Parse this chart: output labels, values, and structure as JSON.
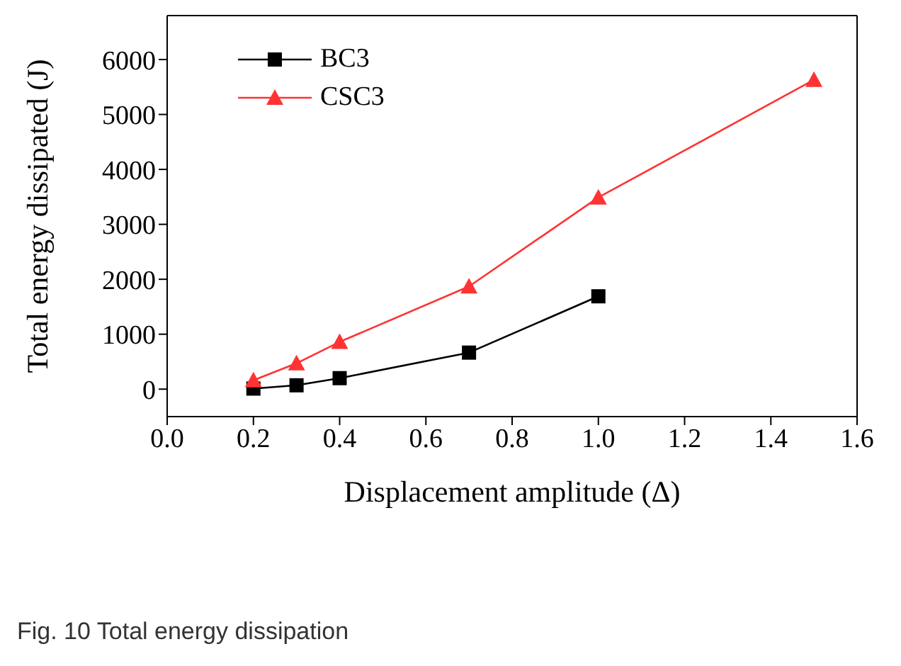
{
  "chart_data": {
    "type": "line",
    "xlabel": "Displacement amplitude (Δ)",
    "ylabel": "Total energy dissipated (J)",
    "annotations": [
      "Fig. 10 Total energy dissipation"
    ],
    "xlim": [
      0,
      1.6
    ],
    "xticks": [
      {
        "value": 0,
        "label": "0.0"
      },
      {
        "value": 0.2,
        "label": "0.2"
      },
      {
        "value": 0.4,
        "label": "0.4"
      },
      {
        "value": 0.6,
        "label": "0.6"
      },
      {
        "value": 0.8,
        "label": "0.8"
      },
      {
        "value": 1,
        "label": "1.0"
      },
      {
        "value": 1.2,
        "label": "1.2"
      },
      {
        "value": 1.4,
        "label": "1.4"
      },
      {
        "value": 1.6,
        "label": "1.6"
      }
    ],
    "ylim": [
      -500,
      6800
    ],
    "yticks": [
      0,
      1000,
      2000,
      3000,
      4000,
      5000,
      6000
    ],
    "grid": false,
    "legend": "top left",
    "series": [
      {
        "name": "BC3",
        "color": "#000000",
        "marker": "square",
        "x": [
          0.2,
          0.3,
          0.4,
          0.7,
          1.0
        ],
        "values": [
          10,
          70,
          200,
          665,
          1690
        ]
      },
      {
        "name": "CSC3",
        "color": "#ff3333",
        "marker": "triangle",
        "x": [
          0.2,
          0.3,
          0.4,
          0.7,
          1.0,
          1.5
        ],
        "values": [
          160,
          470,
          860,
          1870,
          3490,
          5630
        ]
      }
    ]
  }
}
